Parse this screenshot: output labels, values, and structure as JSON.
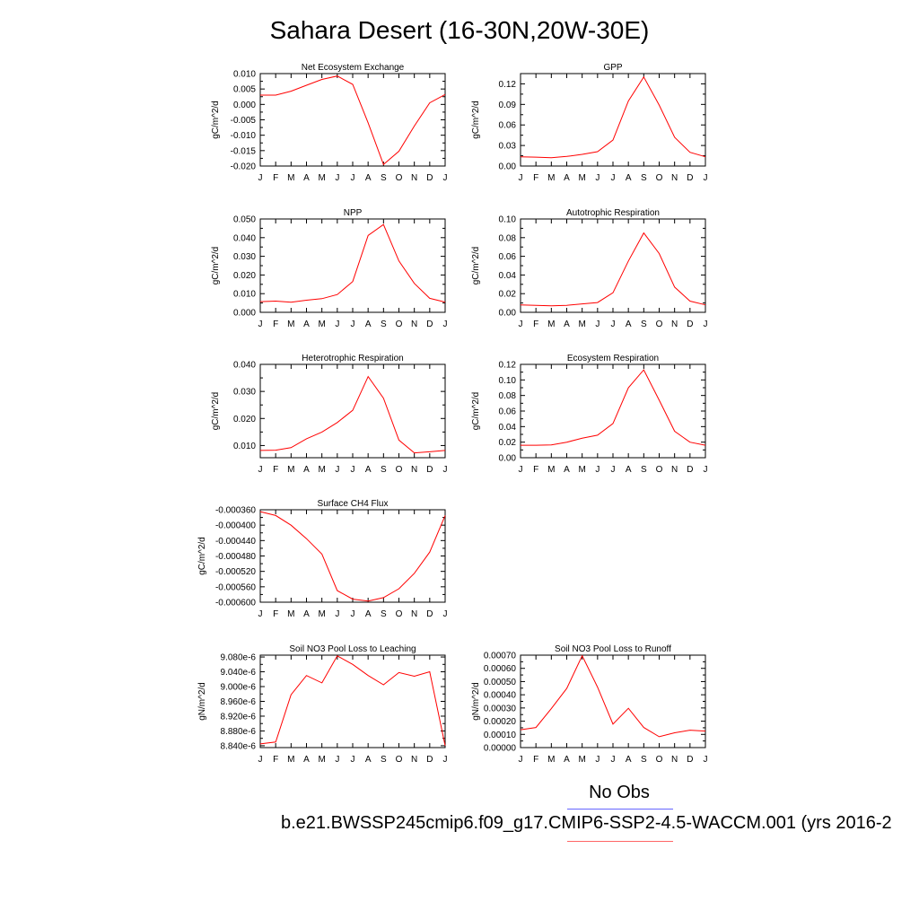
{
  "title": "Sahara Desert (16-30N,20W-30E)",
  "legend": {
    "title": "No Obs",
    "label": "b.e21.BWSSP245cmip6.f09_g17.CMIP6-SSP2-4.5-WACCM.001 (yrs 2016-2",
    "colors": {
      "obs": "#6666ff",
      "model": "#ff6666"
    }
  },
  "line_color": "#ff0000",
  "chart_data": [
    {
      "type": "line",
      "title": "Net Ecosystem Exchange",
      "ylabel": "gC/m^2/d",
      "categories": [
        "J",
        "F",
        "M",
        "A",
        "M",
        "J",
        "J",
        "A",
        "S",
        "O",
        "N",
        "D",
        "J"
      ],
      "yticks": [
        "0.010",
        "0.005",
        "0.000",
        "-0.005",
        "-0.010",
        "-0.015",
        "-0.020"
      ],
      "ylim": [
        -0.02,
        0.01
      ],
      "values": [
        0.003,
        0.003,
        0.0043,
        0.0062,
        0.0081,
        0.0092,
        0.0065,
        -0.006,
        -0.0195,
        -0.0152,
        -0.007,
        0.0005,
        0.0032
      ]
    },
    {
      "type": "line",
      "title": "GPP",
      "ylabel": "gC/m^2/d",
      "categories": [
        "J",
        "F",
        "M",
        "A",
        "M",
        "J",
        "J",
        "A",
        "S",
        "O",
        "N",
        "D",
        "J"
      ],
      "yticks": [
        "0.12",
        "0.09",
        "0.06",
        "0.03",
        "0.00"
      ],
      "ylim": [
        0,
        0.135
      ],
      "values": [
        0.0135,
        0.013,
        0.012,
        0.014,
        0.017,
        0.021,
        0.038,
        0.095,
        0.13,
        0.089,
        0.042,
        0.02,
        0.0135
      ]
    },
    {
      "type": "line",
      "title": "NPP",
      "ylabel": "gC/m^2/d",
      "categories": [
        "J",
        "F",
        "M",
        "A",
        "M",
        "J",
        "J",
        "A",
        "S",
        "O",
        "N",
        "D",
        "J"
      ],
      "yticks": [
        "0.050",
        "0.040",
        "0.030",
        "0.020",
        "0.010",
        "0.000"
      ],
      "ylim": [
        0,
        0.05
      ],
      "values": [
        0.0057,
        0.006,
        0.0054,
        0.0065,
        0.0073,
        0.0095,
        0.0165,
        0.0412,
        0.047,
        0.0275,
        0.0155,
        0.0075,
        0.0055
      ]
    },
    {
      "type": "line",
      "title": "Autotrophic Respiration",
      "ylabel": "gC/m^2/d",
      "categories": [
        "J",
        "F",
        "M",
        "A",
        "M",
        "J",
        "J",
        "A",
        "S",
        "O",
        "N",
        "D",
        "J"
      ],
      "yticks": [
        "0.10",
        "0.08",
        "0.06",
        "0.04",
        "0.02",
        "0.00"
      ],
      "ylim": [
        0,
        0.1
      ],
      "values": [
        0.008,
        0.0075,
        0.007,
        0.0075,
        0.009,
        0.0105,
        0.021,
        0.055,
        0.085,
        0.063,
        0.027,
        0.012,
        0.008
      ]
    },
    {
      "type": "line",
      "title": "Heterotrophic Respiration",
      "ylabel": "gC/m^2/d",
      "categories": [
        "J",
        "F",
        "M",
        "A",
        "M",
        "J",
        "J",
        "A",
        "S",
        "O",
        "N",
        "D",
        "J"
      ],
      "yticks": [
        "0.040",
        "0.030",
        "0.020",
        "0.010"
      ],
      "ylim": [
        0.0055,
        0.04
      ],
      "values": [
        0.0082,
        0.0083,
        0.0092,
        0.0125,
        0.015,
        0.0185,
        0.023,
        0.0355,
        0.0275,
        0.012,
        0.0073,
        0.0077,
        0.0082
      ]
    },
    {
      "type": "line",
      "title": "Ecosystem Respiration",
      "ylabel": "gC/m^2/d",
      "categories": [
        "J",
        "F",
        "M",
        "A",
        "M",
        "J",
        "J",
        "A",
        "S",
        "O",
        "N",
        "D",
        "J"
      ],
      "yticks": [
        "0.12",
        "0.10",
        "0.08",
        "0.06",
        "0.04",
        "0.02",
        "0.00"
      ],
      "ylim": [
        0,
        0.12
      ],
      "values": [
        0.016,
        0.016,
        0.0165,
        0.02,
        0.025,
        0.029,
        0.044,
        0.09,
        0.113,
        0.074,
        0.034,
        0.02,
        0.016
      ]
    },
    {
      "type": "line",
      "title": "Surface CH4 Flux",
      "ylabel": "gC/m^2/d",
      "categories": [
        "J",
        "F",
        "M",
        "A",
        "M",
        "J",
        "J",
        "A",
        "S",
        "O",
        "N",
        "D",
        "J"
      ],
      "yticks": [
        "-0.000360",
        "-0.000400",
        "-0.000440",
        "-0.000480",
        "-0.000520",
        "-0.000560",
        "-0.000600"
      ],
      "ylim": [
        -0.0006,
        -0.00036
      ],
      "values": [
        -0.000365,
        -0.000375,
        -0.0004,
        -0.000435,
        -0.000475,
        -0.00057,
        -0.000592,
        -0.000597,
        -0.000588,
        -0.000565,
        -0.000525,
        -0.00047,
        -0.000375
      ]
    },
    {
      "type": "line",
      "title": "Soil NO3 Pool Loss to Leaching",
      "ylabel": "gN/m^2/d",
      "categories": [
        "J",
        "F",
        "M",
        "A",
        "M",
        "J",
        "J",
        "A",
        "S",
        "O",
        "N",
        "D",
        "J"
      ],
      "yticks": [
        "9.080e-6",
        "9.040e-6",
        "9.000e-6",
        "8.960e-6",
        "8.920e-6",
        "8.880e-6",
        "8.840e-6"
      ],
      "ylim": [
        8.835e-06,
        9.085e-06
      ],
      "values": [
        8.845e-06,
        8.85e-06,
        8.978e-06,
        9.03e-06,
        9.01e-06,
        9.083e-06,
        9.06e-06,
        9.03e-06,
        9.005e-06,
        9.038e-06,
        9.028e-06,
        9.04e-06,
        8.84e-06
      ]
    },
    {
      "type": "line",
      "title": "Soil NO3 Pool Loss to Runoff",
      "ylabel": "gN/m^2/d",
      "categories": [
        "J",
        "F",
        "M",
        "A",
        "M",
        "J",
        "J",
        "A",
        "S",
        "O",
        "N",
        "D",
        "J"
      ],
      "yticks": [
        "0.00070",
        "0.00060",
        "0.00050",
        "0.00040",
        "0.00030",
        "0.00020",
        "0.00010",
        "0.00000"
      ],
      "ylim": [
        0,
        0.0007
      ],
      "values": [
        0.000135,
        0.000152,
        0.000295,
        0.000448,
        0.000695,
        0.000458,
        0.000178,
        0.000298,
        0.000152,
        8.2e-05,
        0.000112,
        0.000132,
        0.000125
      ]
    }
  ]
}
